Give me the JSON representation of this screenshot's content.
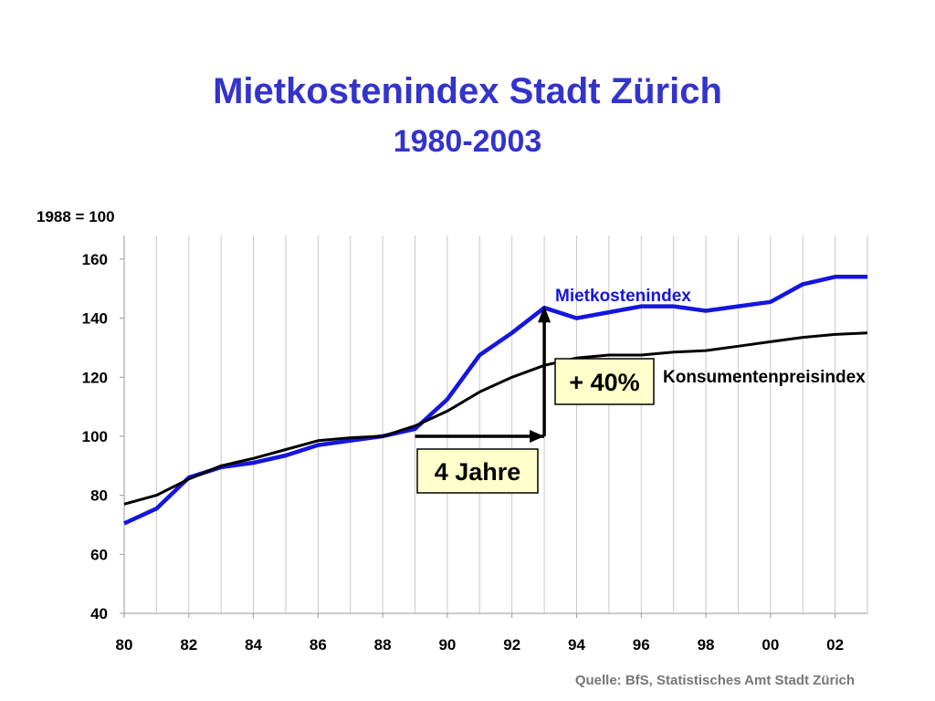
{
  "title": "Mietkostenindex Stadt Zürich",
  "subtitle": "1980-2003",
  "source": "Quelle: BfS, Statistisches Amt Stadt Zürich",
  "chart_data": {
    "type": "line",
    "ylabel": "1988 = 100",
    "ylim": [
      40,
      168
    ],
    "xlim": [
      1980,
      2003
    ],
    "yticks": [
      40,
      60,
      80,
      100,
      120,
      140,
      160
    ],
    "xticks": [
      1980,
      1982,
      1984,
      1986,
      1988,
      1990,
      1992,
      1994,
      1996,
      1998,
      2000,
      2002
    ],
    "xtick_labels": [
      "80",
      "82",
      "84",
      "86",
      "88",
      "90",
      "92",
      "94",
      "96",
      "98",
      "00",
      "02"
    ],
    "grid": "vertical",
    "x": [
      1980,
      1981,
      1982,
      1983,
      1984,
      1985,
      1986,
      1987,
      1988,
      1989,
      1990,
      1991,
      1992,
      1993,
      1994,
      1995,
      1996,
      1997,
      1998,
      1999,
      2000,
      2001,
      2002,
      2003
    ],
    "series": [
      {
        "name": "Mietkostenindex",
        "color": "#1515e0",
        "values": [
          70.5,
          75.5,
          86,
          89.5,
          91,
          93.5,
          97,
          98.5,
          100,
          102.5,
          112.5,
          127.5,
          135,
          143.5,
          140,
          142,
          144,
          144,
          142.5,
          144,
          145.5,
          151.5,
          154,
          154
        ]
      },
      {
        "name": "Konsumentenpreisindex",
        "color": "#000000",
        "values": [
          77,
          80,
          85.5,
          90,
          92.5,
          95.5,
          98.5,
          99.5,
          100,
          103.5,
          108.5,
          115,
          120,
          124,
          126.5,
          127.5,
          127.5,
          128.5,
          129,
          130.5,
          132,
          133.5,
          134.5,
          135
        ]
      }
    ],
    "annotations": [
      {
        "text": "+ 40%"
      },
      {
        "text": "4 Jahre"
      }
    ]
  }
}
